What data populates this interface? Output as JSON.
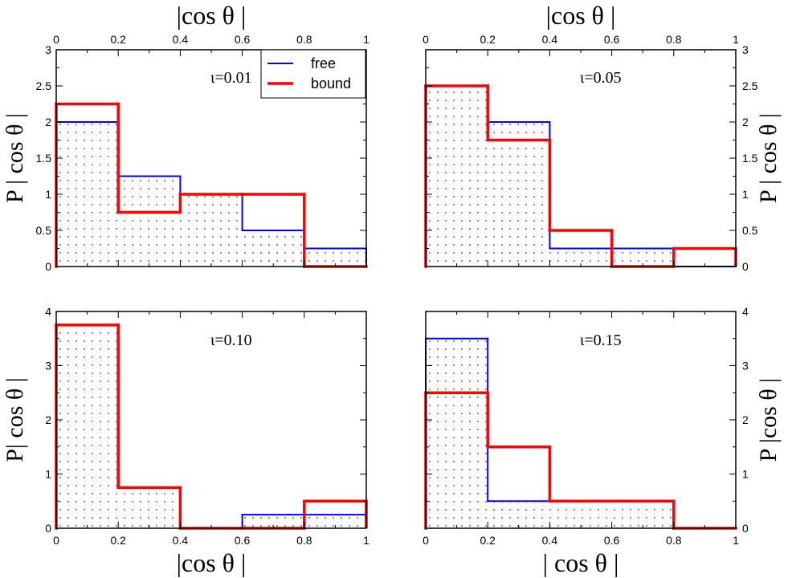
{
  "colors": {
    "free": "#0000ff",
    "bound": "#ff0000",
    "dots": "#3a4fd0",
    "axis": "#000000"
  },
  "legend": {
    "placement": "top-right of top-left panel",
    "free_label": "free",
    "bound_label": "bound"
  },
  "chart_data": [
    {
      "type": "histogram",
      "id": "p1",
      "annotation": "ι=0.01",
      "bins": [
        0,
        0.2,
        0.4,
        0.6,
        0.8,
        1.0
      ],
      "series": [
        {
          "name": "free",
          "values": [
            2.0,
            1.25,
            1.0,
            0.5,
            0.25
          ]
        },
        {
          "name": "bound",
          "values": [
            2.25,
            0.75,
            1.0,
            1.0,
            0.0
          ]
        }
      ],
      "xlim": [
        0,
        1
      ],
      "ylim": [
        0,
        3
      ],
      "xticks": [
        "0",
        "0.2",
        "0.4",
        "0.6",
        "0.8",
        "1"
      ],
      "yticks": [
        "0",
        "0.5",
        "1",
        "1.5",
        "2",
        "2.5",
        "3"
      ],
      "xlabel_top": "|cos θ |",
      "ylabel": "P | cos θ |"
    },
    {
      "type": "histogram",
      "id": "p2",
      "annotation": "ι=0.05",
      "bins": [
        0,
        0.2,
        0.4,
        0.6,
        0.8,
        1.0
      ],
      "series": [
        {
          "name": "free",
          "values": [
            2.5,
            2.0,
            0.25,
            0.25,
            0.0
          ]
        },
        {
          "name": "bound",
          "values": [
            2.5,
            1.75,
            0.5,
            0.0,
            0.25
          ]
        }
      ],
      "xlim": [
        0,
        1
      ],
      "ylim": [
        0,
        3
      ],
      "xticks": [
        "0",
        "0.2",
        "0.4",
        "0.6",
        "0.8",
        "1"
      ],
      "yticks": [
        "0",
        "0.5",
        "1",
        "1.5",
        "2",
        "2.5",
        "3"
      ],
      "xlabel_top": "|cos θ |",
      "ylabel": "P | cos θ |"
    },
    {
      "type": "histogram",
      "id": "p3",
      "annotation": "ι=0.10",
      "bins": [
        0,
        0.2,
        0.4,
        0.6,
        0.8,
        1.0
      ],
      "series": [
        {
          "name": "free",
          "values": [
            3.75,
            0.75,
            0.0,
            0.25,
            0.25
          ]
        },
        {
          "name": "bound",
          "values": [
            3.75,
            0.75,
            0.0,
            0.0,
            0.5
          ]
        }
      ],
      "xlim": [
        0,
        1
      ],
      "ylim": [
        0,
        4
      ],
      "xticks": [
        "0",
        "0.2",
        "0.4",
        "0.6",
        "0.8",
        "1"
      ],
      "yticks": [
        "0",
        "1",
        "2",
        "3",
        "4"
      ],
      "xlabel_bottom": "|cos θ |",
      "ylabel": "P| cos θ |"
    },
    {
      "type": "histogram",
      "id": "p4",
      "annotation": "ι=0.15",
      "bins": [
        0,
        0.2,
        0.4,
        0.6,
        0.8,
        1.0
      ],
      "series": [
        {
          "name": "free",
          "values": [
            3.5,
            0.5,
            0.5,
            0.5,
            0.0
          ]
        },
        {
          "name": "bound",
          "values": [
            2.5,
            1.5,
            0.5,
            0.5,
            0.0
          ]
        }
      ],
      "xlim": [
        0,
        1
      ],
      "ylim": [
        0,
        4
      ],
      "xticks": [
        "0",
        "0.2",
        "0.4",
        "0.6",
        "0.8",
        "1"
      ],
      "yticks": [
        "0",
        "1",
        "2",
        "3",
        "4"
      ],
      "xlabel_bottom": "| cos θ |",
      "ylabel": "P |cos θ |"
    }
  ]
}
